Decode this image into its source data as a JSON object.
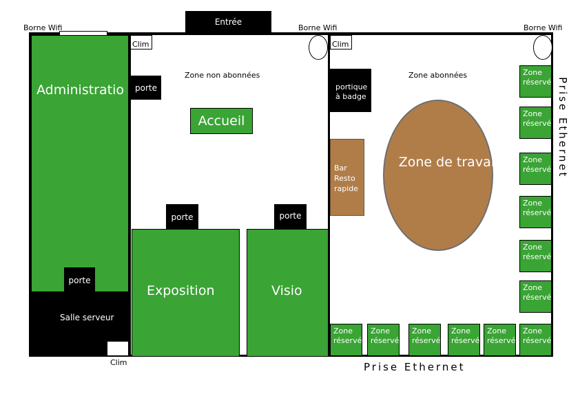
{
  "plan": {
    "entrance": "Entrée",
    "wifi_left": "Borne Wifi",
    "wifi_middle": "Borne Wifi",
    "wifi_right": "Borne Wifi",
    "clim_1": "Clim",
    "clim_2": "Clim",
    "clim_3": "Clim",
    "administration": "Administratio",
    "door_admin": "porte",
    "door_server": "porte",
    "door_expo": "porte",
    "door_visio": "porte",
    "server_room": "Salle serveur",
    "zone_non_subscribers": "Zone non abonnées",
    "reception": "Accueil",
    "exhibition": "Exposition",
    "visio": "Visio",
    "zone_subscribers": "Zone abonnées",
    "badge_gate": "portique\nà badge",
    "bar": "Bar\nResto\nrapide",
    "work_zone": "Zone de travail",
    "ethernet_right": "Prise Ethernet",
    "ethernet_bottom": "Prise Ethernet",
    "reserved_zones_right": [
      "Zone\nréservé",
      "Zone\nréservé",
      "Zone\nréservé",
      "Zone\nréservé",
      "Zone\nréservé",
      "Zone\nréservé"
    ],
    "reserved_zones_bottom": [
      "Zone\nréservé",
      "Zone\nréservé",
      "Zone\nréservé",
      "Zone\nréservé",
      "Zone\nréservé",
      "Zone\nréservé"
    ]
  },
  "colors": {
    "room_green": "#3aa435",
    "bar_brown": "#b07d49",
    "wall": "#000000"
  }
}
